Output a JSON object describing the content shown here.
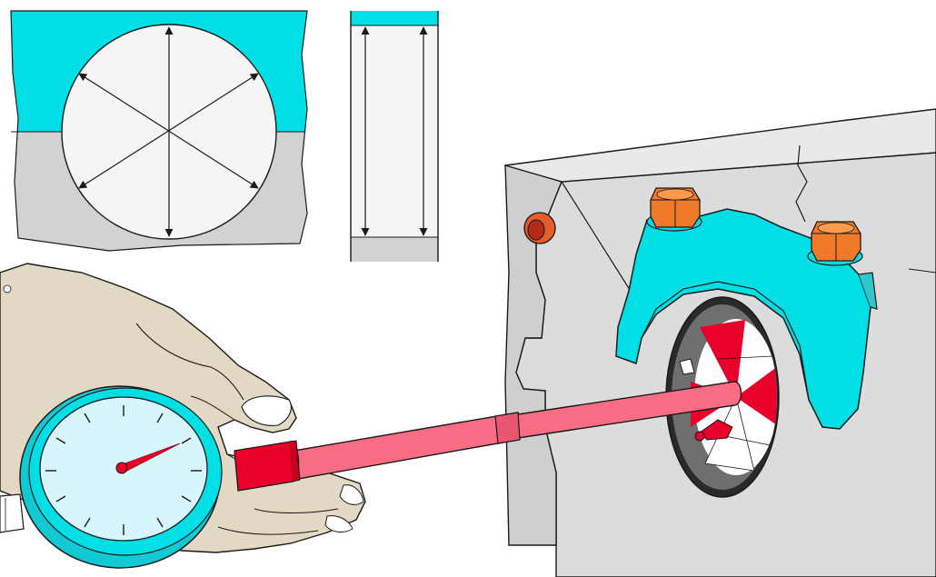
{
  "illustration": {
    "colors": {
      "cyan": "#00dfe5",
      "bearing_gray": "#d2d2d2",
      "bore_white": "#f5f5f5",
      "block_gray": "#dcdcdc",
      "nut_orange": "#f07a2a",
      "rod_pink": "#f86d84",
      "rod_red": "#e8002a",
      "gauge_face": "#d7f6fb",
      "skin": "#e2d8c4",
      "outline": "#1a1a1a"
    },
    "icons": {
      "measurement_arrows": "double-headed-arrow",
      "gauge_needle": "needle",
      "cap_bolts": "hex-nut"
    }
  }
}
